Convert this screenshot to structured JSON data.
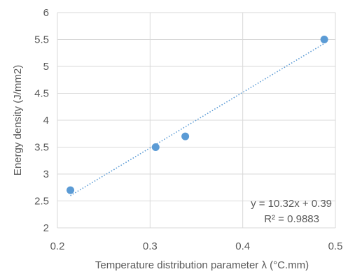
{
  "chart_data": {
    "type": "scatter",
    "xlabel": "Temperature distribution parameter λ (°C.mm)",
    "ylabel": "Energy density (J/mm2)",
    "xlim": [
      0.2,
      0.5
    ],
    "ylim": [
      2,
      6
    ],
    "x_ticks": [
      "0.2",
      "0.3",
      "0.4",
      "0.5"
    ],
    "y_ticks": [
      "2",
      "2.5",
      "3",
      "3.5",
      "4",
      "4.5",
      "5",
      "5.5",
      "6"
    ],
    "grid": true,
    "legend": "none",
    "series": [
      {
        "x": [
          0.214,
          0.306,
          0.338,
          0.488
        ],
        "y": [
          2.7,
          3.5,
          3.7,
          5.5
        ],
        "color": "#5b9bd5"
      }
    ],
    "trendline": {
      "type": "linear",
      "slope": 10.32,
      "intercept": 0.39,
      "x_range": [
        0.214,
        0.488
      ],
      "color": "#5b9bd5",
      "style": "dotted"
    },
    "annotations": {
      "equation": "y = 10.32x + 0.39",
      "r_squared": "R² = 0.9883"
    }
  }
}
